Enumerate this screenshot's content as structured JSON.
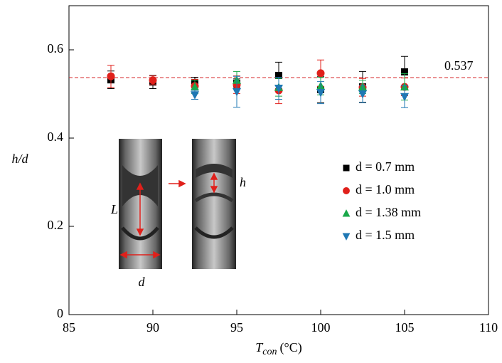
{
  "chart_data": {
    "type": "scatter",
    "x_label": {
      "symbol": "T",
      "subscript": "con",
      "unit": "(°C)"
    },
    "y_label": "h/d",
    "xlim": [
      85,
      110
    ],
    "xticks": [
      85,
      90,
      95,
      100,
      105,
      110
    ],
    "ylim": [
      0,
      0.7
    ],
    "yticks": [
      0,
      0.2,
      0.4,
      0.6
    ],
    "reference_line": {
      "value": 0.537,
      "label": "0.537",
      "color": "#d62728"
    },
    "legend": "center right",
    "annotations": {
      "L": "L",
      "d": "d",
      "h": "h"
    },
    "series": [
      {
        "name": "d = 0.7 mm",
        "color": "#000000",
        "marker": "square",
        "x": [
          87.5,
          90,
          92.5,
          95,
          97.5,
          100,
          102.5,
          105
        ],
        "values": [
          0.532,
          0.527,
          0.526,
          0.524,
          0.542,
          0.51,
          0.516,
          0.55
        ],
        "errors": [
          0.02,
          0.015,
          0.012,
          0.01,
          0.03,
          0.03,
          0.035,
          0.035
        ]
      },
      {
        "name": "d = 1.0 mm",
        "color": "#e0201b",
        "marker": "circle",
        "x": [
          87.5,
          90,
          92.5,
          95,
          97.5,
          100,
          102.5,
          105
        ],
        "values": [
          0.54,
          0.531,
          0.518,
          0.521,
          0.508,
          0.547,
          0.515,
          0.516
        ],
        "errors": [
          0.025,
          0.01,
          0.015,
          0.02,
          0.03,
          0.03,
          0.02,
          0.02
        ]
      },
      {
        "name": "d = 1.38 mm",
        "color": "#1aa84a",
        "marker": "triangle-up",
        "x": [
          92.5,
          95,
          97.5,
          100,
          102.5,
          105
        ],
        "values": [
          0.516,
          0.531,
          0.515,
          0.518,
          0.516,
          0.516
        ],
        "errors": [
          0.015,
          0.02,
          0.02,
          0.02,
          0.015,
          0.03
        ]
      },
      {
        "name": "d = 1.5 mm",
        "color": "#1f78b4",
        "marker": "triangle-down",
        "x": [
          92.5,
          95,
          97.5,
          100,
          102.5,
          105
        ],
        "values": [
          0.498,
          0.505,
          0.513,
          0.503,
          0.5,
          0.494
        ],
        "errors": [
          0.01,
          0.035,
          0.025,
          0.025,
          0.02,
          0.025
        ]
      }
    ]
  }
}
